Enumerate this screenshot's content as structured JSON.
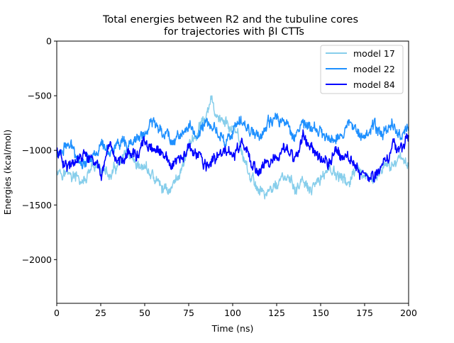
{
  "chart_data": {
    "type": "line",
    "title_lines": [
      "Total energies between R2 and the tubuline cores",
      "for trajectories with βI CTTs"
    ],
    "xlabel": "Time (ns)",
    "ylabel": "Energies (kcal/mol)",
    "xlim": [
      0,
      200
    ],
    "ylim": [
      -2400,
      0
    ],
    "xticks": [
      0,
      25,
      50,
      75,
      100,
      125,
      150,
      175,
      200
    ],
    "yticks": [
      0,
      -500,
      -1000,
      -1500,
      -2000
    ],
    "ytick_labels": [
      "0",
      "−500",
      "−1000",
      "−1500",
      "−2000"
    ],
    "grid": false,
    "legend_position": "upper-right",
    "series": [
      {
        "name": "model 17",
        "color": "#87ceeb",
        "x": [
          0,
          5,
          10,
          15,
          20,
          25,
          30,
          35,
          40,
          45,
          50,
          55,
          60,
          65,
          70,
          75,
          80,
          85,
          88,
          90,
          95,
          100,
          105,
          110,
          115,
          120,
          125,
          130,
          135,
          140,
          145,
          150,
          155,
          160,
          165,
          170,
          175,
          180,
          185,
          190,
          195,
          200
        ],
        "y": [
          -1150,
          -1200,
          -1250,
          -1300,
          -1200,
          -1150,
          -1250,
          -1150,
          -1050,
          -1200,
          -1150,
          -1250,
          -1350,
          -1350,
          -1200,
          -950,
          -850,
          -700,
          -550,
          -650,
          -750,
          -800,
          -1000,
          -1250,
          -1350,
          -1400,
          -1300,
          -1250,
          -1350,
          -1300,
          -1400,
          -1250,
          -1150,
          -1250,
          -1300,
          -1200,
          -1300,
          -1250,
          -1200,
          -1150,
          -1050,
          -1100
        ]
      },
      {
        "name": "model 22",
        "color": "#1e90ff",
        "x": [
          0,
          5,
          10,
          15,
          20,
          25,
          30,
          35,
          40,
          45,
          50,
          55,
          60,
          65,
          70,
          75,
          80,
          85,
          90,
          95,
          100,
          105,
          110,
          115,
          120,
          125,
          130,
          135,
          140,
          145,
          150,
          155,
          160,
          165,
          170,
          175,
          180,
          185,
          190,
          195,
          200
        ],
        "y": [
          -1050,
          -950,
          -1000,
          -1100,
          -1050,
          -950,
          -1000,
          -950,
          -1000,
          -900,
          -850,
          -750,
          -800,
          -900,
          -850,
          -800,
          -850,
          -750,
          -800,
          -900,
          -850,
          -750,
          -800,
          -850,
          -800,
          -700,
          -750,
          -850,
          -750,
          -800,
          -850,
          -900,
          -850,
          -800,
          -750,
          -850,
          -800,
          -850,
          -750,
          -850,
          -800
        ]
      },
      {
        "name": "model 84",
        "color": "#0000ff",
        "x": [
          0,
          5,
          10,
          15,
          20,
          25,
          30,
          35,
          40,
          45,
          50,
          55,
          60,
          65,
          70,
          75,
          80,
          85,
          90,
          95,
          100,
          105,
          110,
          115,
          120,
          125,
          130,
          135,
          140,
          145,
          150,
          155,
          160,
          165,
          170,
          175,
          180,
          185,
          190,
          195,
          200
        ],
        "y": [
          -1000,
          -1100,
          -1150,
          -1050,
          -1100,
          -1200,
          -1050,
          -1100,
          -1000,
          -1050,
          -950,
          -1000,
          -1050,
          -1150,
          -1100,
          -1000,
          -1050,
          -1150,
          -1100,
          -1000,
          -1050,
          -950,
          -1100,
          -1200,
          -1050,
          -1100,
          -1000,
          -1050,
          -900,
          -950,
          -1050,
          -1100,
          -1000,
          -1050,
          -1150,
          -1200,
          -1250,
          -1150,
          -1000,
          -950,
          -900
        ]
      }
    ]
  }
}
